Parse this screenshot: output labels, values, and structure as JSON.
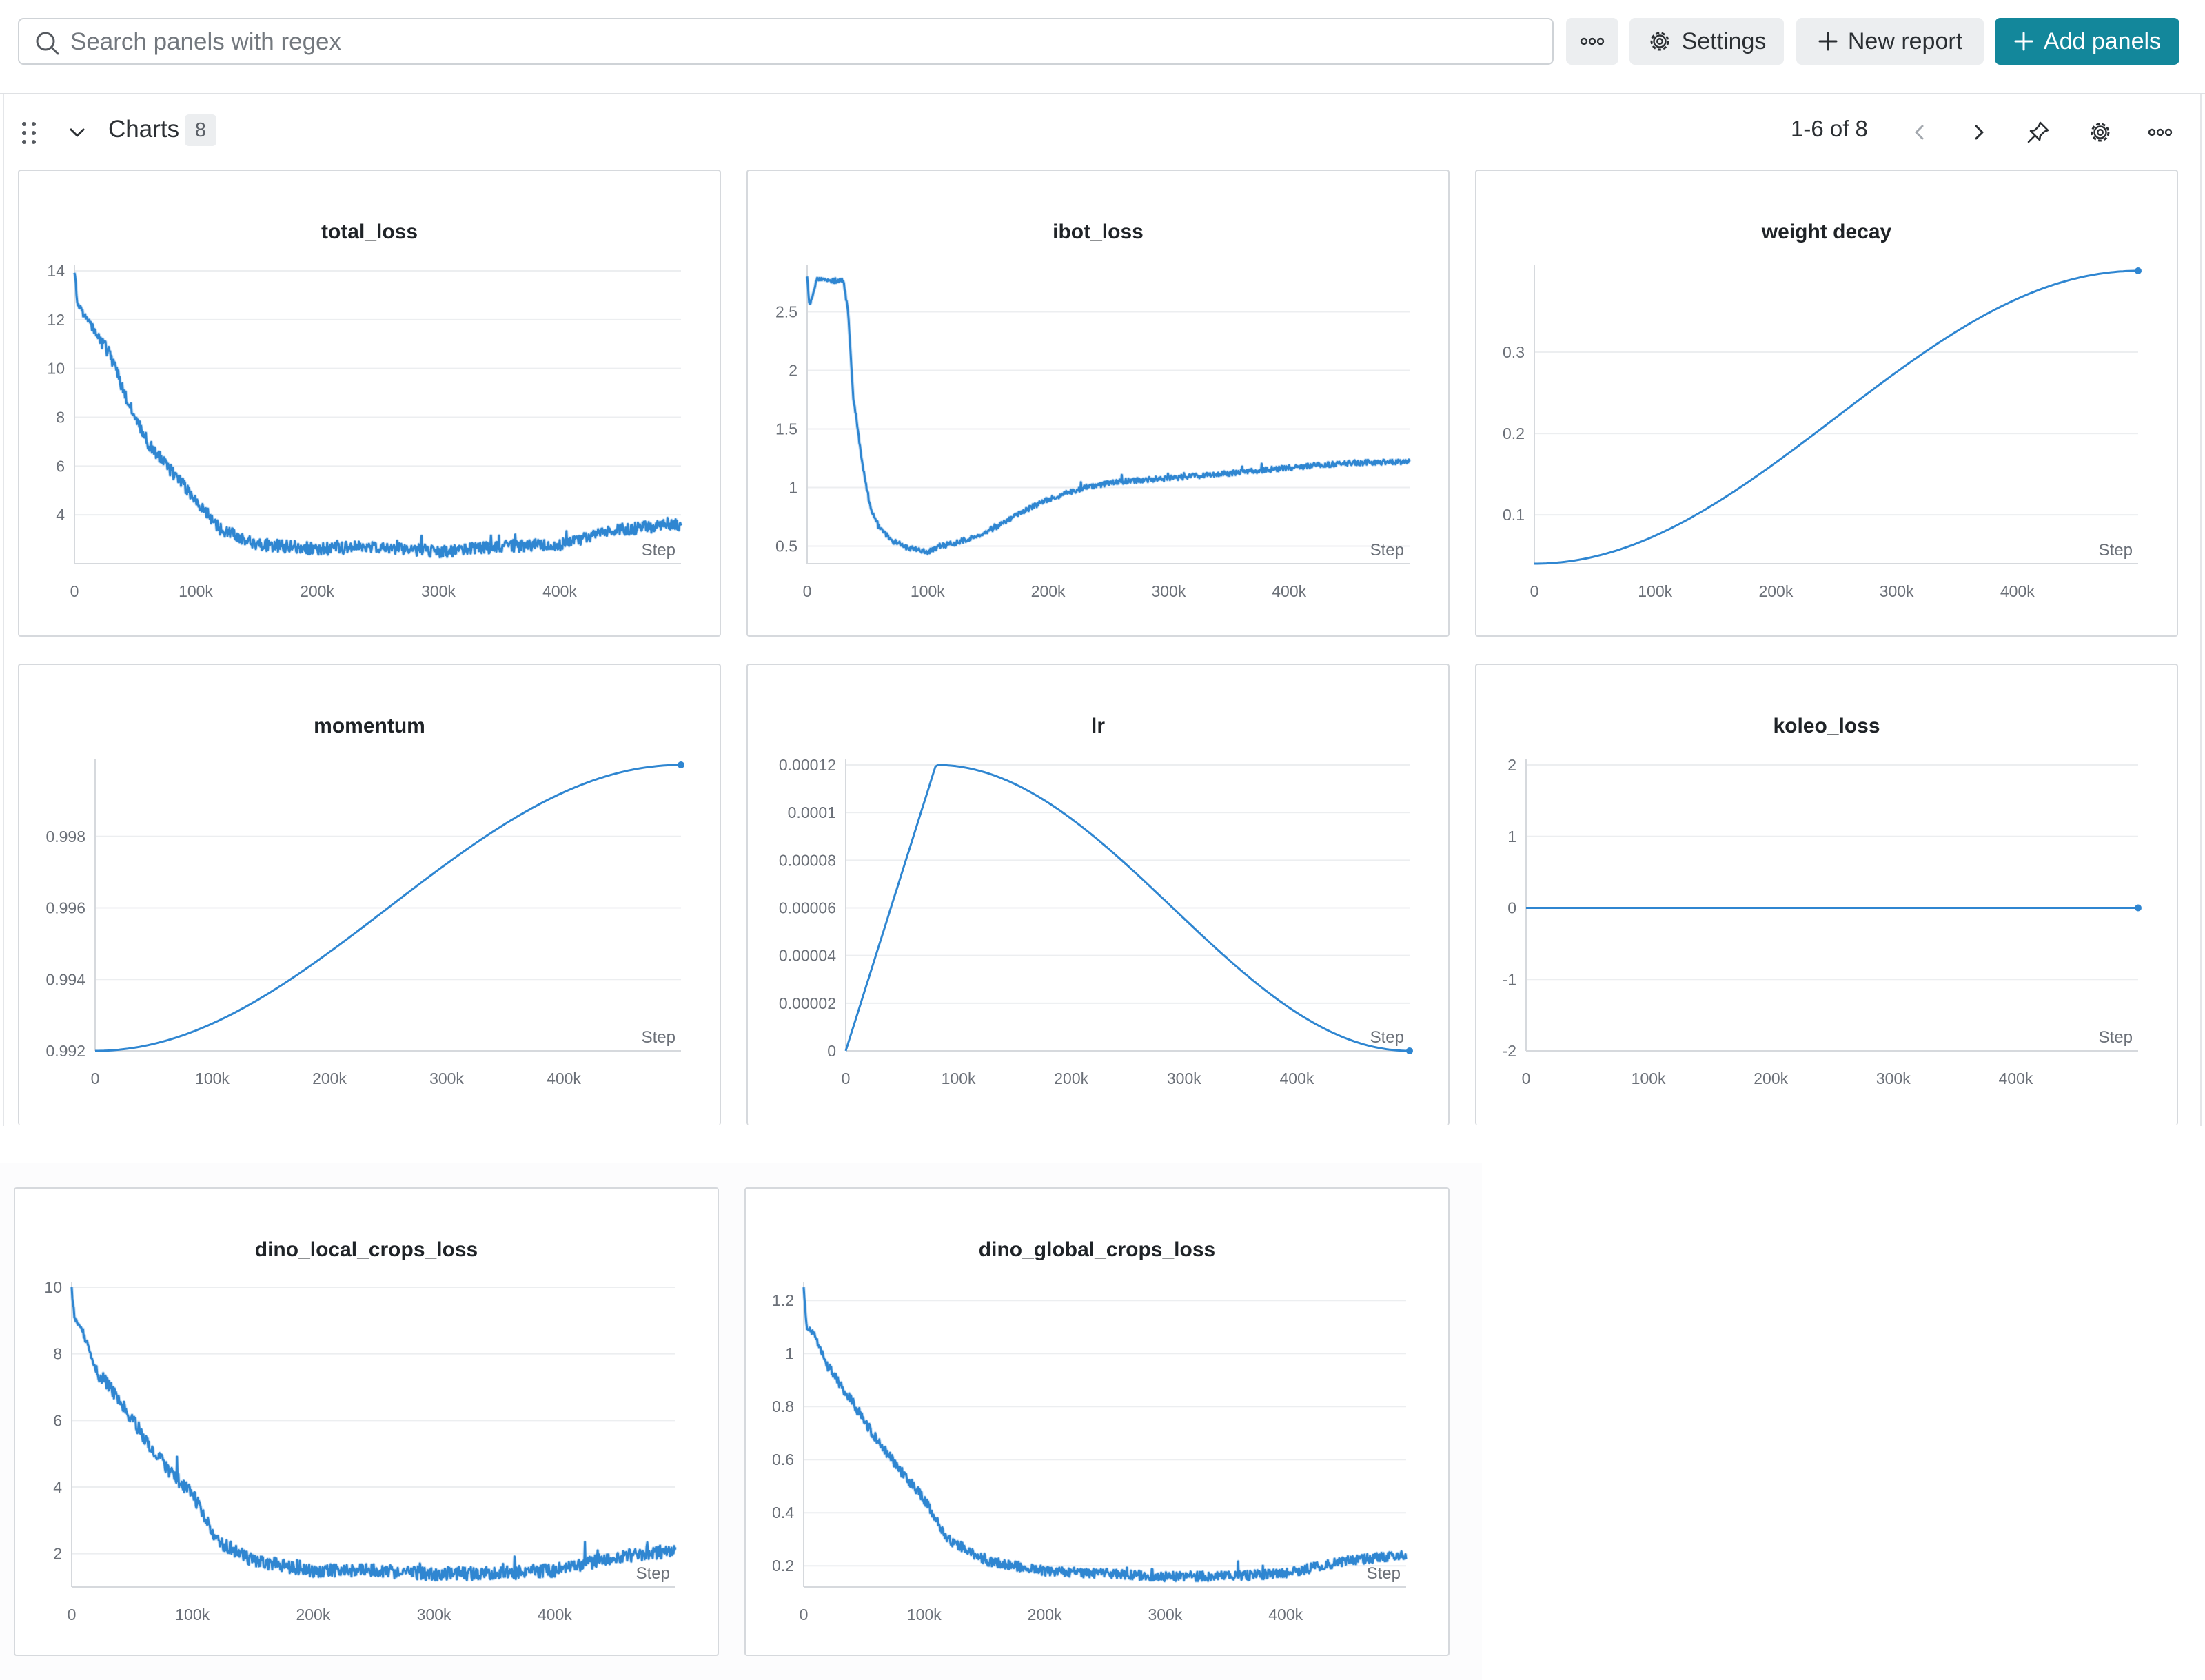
{
  "toolbar": {
    "search_placeholder": "Search panels with regex",
    "more_label": "more",
    "settings_label": "Settings",
    "new_report_label": "New report",
    "add_panels_label": "Add panels",
    "accent_color": "#13879b"
  },
  "section": {
    "title": "Charts",
    "count": "8",
    "pager": "1-6 of 8"
  },
  "panels": [
    {
      "title": "total_loss",
      "x_label": "Step"
    },
    {
      "title": "ibot_loss",
      "x_label": "Step"
    },
    {
      "title": "weight decay",
      "x_label": "Step"
    },
    {
      "title": "momentum",
      "x_label": "Step"
    },
    {
      "title": "lr",
      "x_label": "Step"
    },
    {
      "title": "koleo_loss",
      "x_label": "Step"
    },
    {
      "title": "dino_local_crops_loss",
      "x_label": "Step"
    },
    {
      "title": "dino_global_crops_loss",
      "x_label": "Step"
    }
  ],
  "chart_data": [
    {
      "type": "line",
      "title": "total_loss",
      "xlabel": "Step",
      "ylabel": "",
      "xlim": [
        0,
        500000
      ],
      "ylim": [
        2,
        14
      ],
      "xticks": [
        0,
        100000,
        200000,
        300000,
        400000
      ],
      "xtick_labels": [
        "0",
        "100k",
        "200k",
        "300k",
        "400k"
      ],
      "yticks": [
        4,
        6,
        8,
        10,
        12,
        14
      ],
      "ytick_labels": [
        "4",
        "6",
        "8",
        "10",
        "12",
        "14"
      ],
      "grid": true,
      "noisy": true,
      "noise": 0.25,
      "seed": 3,
      "x": [
        0,
        2500,
        8000,
        20000,
        30000,
        45000,
        60000,
        80000,
        100000,
        120000,
        150000,
        200000,
        250000,
        300000,
        350000,
        400000,
        450000,
        500000
      ],
      "y": [
        14.0,
        12.6,
        12.2,
        11.3,
        10.5,
        8.5,
        7.0,
        5.8,
        4.6,
        3.4,
        2.8,
        2.6,
        2.7,
        2.5,
        2.7,
        2.8,
        3.4,
        3.6
      ]
    },
    {
      "type": "line",
      "title": "ibot_loss",
      "xlabel": "Step",
      "ylabel": "",
      "xlim": [
        0,
        500000
      ],
      "ylim": [
        0.35,
        2.85
      ],
      "xticks": [
        0,
        100000,
        200000,
        300000,
        400000
      ],
      "xtick_labels": [
        "0",
        "100k",
        "200k",
        "300k",
        "400k"
      ],
      "yticks": [
        0.5,
        1,
        1.5,
        2,
        2.5
      ],
      "ytick_labels": [
        "0.5",
        "1",
        "1.5",
        "2",
        "2.5"
      ],
      "grid": true,
      "noisy": true,
      "noise": 0.022,
      "seed": 7,
      "x": [
        0,
        2000,
        8000,
        20000,
        30000,
        34000,
        38000,
        42000,
        46000,
        52000,
        60000,
        70000,
        80000,
        90000,
        100000,
        110000,
        120000,
        140000,
        160000,
        180000,
        200000,
        230000,
        260000,
        300000,
        350000,
        400000,
        450000,
        500000
      ],
      "y": [
        2.8,
        2.55,
        2.78,
        2.77,
        2.76,
        2.5,
        1.8,
        1.5,
        1.2,
        0.85,
        0.65,
        0.55,
        0.5,
        0.47,
        0.45,
        0.5,
        0.52,
        0.58,
        0.68,
        0.8,
        0.9,
        1.0,
        1.05,
        1.08,
        1.12,
        1.17,
        1.21,
        1.22
      ]
    },
    {
      "type": "line",
      "title": "weight decay",
      "xlabel": "Step",
      "ylabel": "",
      "xlim": [
        0,
        500000
      ],
      "ylim": [
        0.04,
        0.4
      ],
      "xticks": [
        0,
        100000,
        200000,
        300000,
        400000
      ],
      "xtick_labels": [
        "0",
        "100k",
        "200k",
        "300k",
        "400k"
      ],
      "yticks": [
        0.1,
        0.2,
        0.3
      ],
      "ytick_labels": [
        "0.1",
        "0.2",
        "0.3"
      ],
      "grid": true,
      "curve": "cosine_rise",
      "y_start": 0.04,
      "y_end": 0.4,
      "end_marker": true
    },
    {
      "type": "line",
      "title": "momentum",
      "xlabel": "Step",
      "ylabel": "",
      "xlim": [
        0,
        500000
      ],
      "ylim": [
        0.992,
        1.0
      ],
      "xticks": [
        0,
        100000,
        200000,
        300000,
        400000
      ],
      "xtick_labels": [
        "0",
        "100k",
        "200k",
        "300k",
        "400k"
      ],
      "yticks": [
        0.992,
        0.994,
        0.996,
        0.998
      ],
      "ytick_labels": [
        "0.992",
        "0.994",
        "0.996",
        "0.998"
      ],
      "grid": true,
      "curve": "cosine_rise",
      "y_start": 0.992,
      "y_end": 1.0,
      "end_marker": true
    },
    {
      "type": "line",
      "title": "lr",
      "xlabel": "Step",
      "ylabel": "",
      "xlim": [
        0,
        500000
      ],
      "ylim": [
        0,
        0.00012
      ],
      "xticks": [
        0,
        100000,
        200000,
        300000,
        400000
      ],
      "xtick_labels": [
        "0",
        "100k",
        "200k",
        "300k",
        "400k"
      ],
      "yticks": [
        0,
        2e-05,
        4e-05,
        6e-05,
        8e-05,
        0.0001,
        0.00012
      ],
      "ytick_labels": [
        "0",
        "0.00002",
        "0.00004",
        "0.00006",
        "0.00008",
        "0.0001",
        "0.00012"
      ],
      "grid": true,
      "curve": "warmup_cosine",
      "warmup_end": 80000,
      "y_peak": 0.00012,
      "end_marker": true
    },
    {
      "type": "line",
      "title": "koleo_loss",
      "xlabel": "Step",
      "ylabel": "",
      "xlim": [
        0,
        500000
      ],
      "ylim": [
        -2,
        2
      ],
      "xticks": [
        0,
        100000,
        200000,
        300000,
        400000
      ],
      "xtick_labels": [
        "0",
        "100k",
        "200k",
        "300k",
        "400k"
      ],
      "yticks": [
        -2,
        -1,
        0,
        1,
        2
      ],
      "ytick_labels": [
        "-2",
        "-1",
        "0",
        "1",
        "2"
      ],
      "grid": true,
      "end_marker": true,
      "x": [
        0,
        500000
      ],
      "y": [
        0,
        0
      ]
    },
    {
      "type": "line",
      "title": "dino_local_crops_loss",
      "xlabel": "Step",
      "ylabel": "",
      "xlim": [
        0,
        500000
      ],
      "ylim": [
        1,
        10
      ],
      "xticks": [
        0,
        100000,
        200000,
        300000,
        400000
      ],
      "xtick_labels": [
        "0",
        "100k",
        "200k",
        "300k",
        "400k"
      ],
      "yticks": [
        2,
        4,
        6,
        8,
        10
      ],
      "ytick_labels": [
        "2",
        "4",
        "6",
        "8",
        "10"
      ],
      "grid": true,
      "noisy": true,
      "noise": 0.2,
      "seed": 11,
      "x": [
        0,
        2500,
        8000,
        20000,
        40000,
        60000,
        80000,
        100000,
        120000,
        150000,
        200000,
        250000,
        300000,
        350000,
        400000,
        450000,
        500000
      ],
      "y": [
        10.0,
        9.0,
        8.8,
        7.5,
        6.6,
        5.5,
        4.5,
        3.8,
        2.4,
        1.8,
        1.5,
        1.5,
        1.4,
        1.4,
        1.5,
        1.9,
        2.1
      ]
    },
    {
      "type": "line",
      "title": "dino_global_crops_loss",
      "xlabel": "Step",
      "ylabel": "",
      "xlim": [
        0,
        500000
      ],
      "ylim": [
        0.12,
        1.25
      ],
      "xticks": [
        0,
        100000,
        200000,
        300000,
        400000
      ],
      "xtick_labels": [
        "0",
        "100k",
        "200k",
        "300k",
        "400k"
      ],
      "yticks": [
        0.2,
        0.4,
        0.6,
        0.8,
        1,
        1.2
      ],
      "ytick_labels": [
        "0.2",
        "0.4",
        "0.6",
        "0.8",
        "1",
        "1.2"
      ],
      "grid": true,
      "noisy": true,
      "noise": 0.018,
      "seed": 19,
      "x": [
        0,
        2500,
        8000,
        20000,
        40000,
        60000,
        80000,
        100000,
        120000,
        150000,
        200000,
        250000,
        300000,
        350000,
        400000,
        450000,
        500000
      ],
      "y": [
        1.25,
        1.1,
        1.08,
        0.95,
        0.82,
        0.68,
        0.56,
        0.45,
        0.3,
        0.22,
        0.18,
        0.17,
        0.16,
        0.16,
        0.17,
        0.22,
        0.24
      ]
    }
  ]
}
